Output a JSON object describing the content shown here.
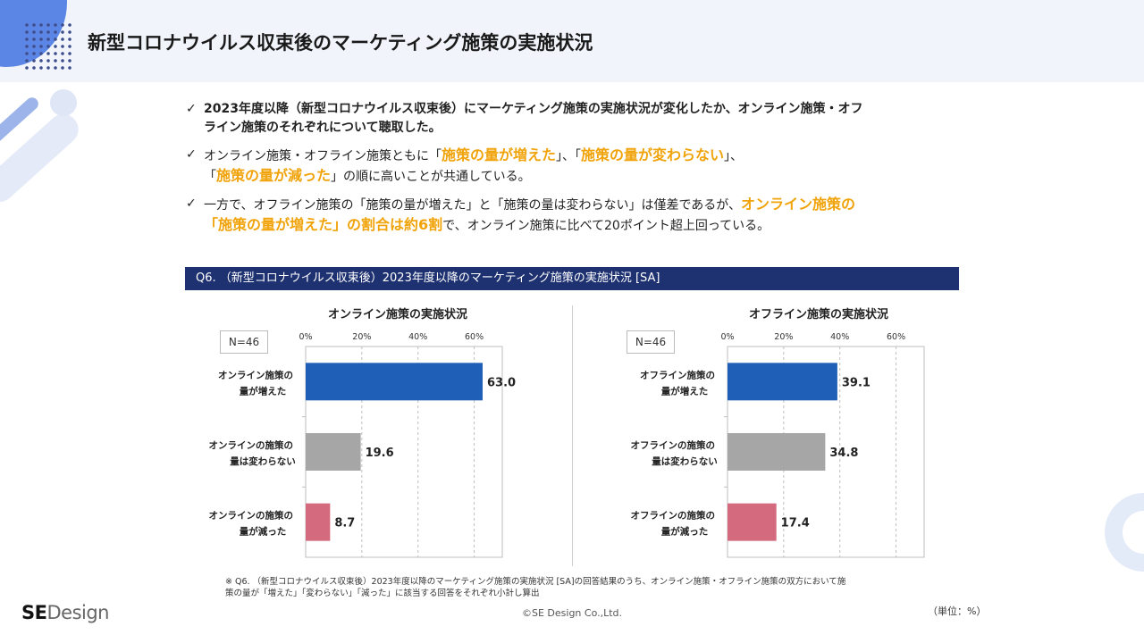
{
  "page": {
    "title": "新型コロナウイルス収束後のマーケティング施策の実施状況"
  },
  "bullets": [
    {
      "check": "✓",
      "line1": "2023年度以降（新型コロナウイルス収束後）にマーケティング施策の実施状況が変化したか、オンライン施策・オフ",
      "line2": "ライン施策のそれぞれについて聴取した。"
    },
    {
      "check": "✓",
      "p1": "オンライン施策・オフライン施策ともに「",
      "h1": "施策の量が増えた",
      "p2": "」、「",
      "h2": "施策の量が変わらない",
      "p3": "」、",
      "p4": "「",
      "h3": "施策の量が減った",
      "p5": "」の順に高いことが共通している。"
    },
    {
      "check": "✓",
      "p1": "一方で、オフライン施策の「施策の量が増えた」と「施策の量は変わらない」は僅差であるが、",
      "h1": "オンライン施策の",
      "h2": "「施策の量が増えた」の割合は約6割",
      "p2": "で、オンライン施策に比べて20ポイント超上回っている。"
    }
  ],
  "question_bar": "Q6. （新型コロナウイルス収束後）2023年度以降のマーケティング施策の実施状況 [SA]",
  "colors": {
    "increase": "#1f5fb8",
    "same": "#a6a6a6",
    "decrease": "#d46a7e",
    "highlight": "#f0a30a",
    "question_bar": "#1e3170"
  },
  "chart_data": [
    {
      "type": "bar",
      "orientation": "horizontal",
      "title": "オンライン施策の実施状況",
      "n_label": "N=46",
      "categories": [
        [
          "オンライン施策の",
          "量が増えた"
        ],
        [
          "オンラインの施策の",
          "量は変わらない"
        ],
        [
          "オンラインの施策の",
          "量が減った"
        ]
      ],
      "values": [
        63.0,
        19.6,
        8.7
      ],
      "value_labels": [
        "63.0",
        "19.6",
        "8.7"
      ],
      "xlim": [
        0,
        70
      ],
      "ticks": [
        0,
        20,
        40,
        60
      ],
      "tick_labels": [
        "0%",
        "20%",
        "40%",
        "60%"
      ],
      "grid": true
    },
    {
      "type": "bar",
      "orientation": "horizontal",
      "title": "オフライン施策の実施状況",
      "n_label": "N=46",
      "categories": [
        [
          "オフライン施策の",
          "量が増えた"
        ],
        [
          "オフラインの施策の",
          "量は変わらない"
        ],
        [
          "オフラインの施策の",
          "量が減った"
        ]
      ],
      "values": [
        39.1,
        34.8,
        17.4
      ],
      "value_labels": [
        "39.1",
        "34.8",
        "17.4"
      ],
      "xlim": [
        0,
        70
      ],
      "ticks": [
        0,
        20,
        40,
        60
      ],
      "tick_labels": [
        "0%",
        "20%",
        "40%",
        "60%"
      ],
      "grid": true
    }
  ],
  "footnote": {
    "line1": "※ Q6. （新型コロナウイルス収束後）2023年度以降のマーケティング施策の実施状況 [SA]の回答結果のうち、オンライン施策・オフライン施策の双方において施",
    "line2": "策の量が「増えた」「変わらない」「減った」に該当する回答をそれぞれ小計し算出"
  },
  "footer": {
    "logo_se": "SE",
    "logo_design": "Design",
    "copyright": "©SE Design Co.,Ltd.",
    "unit": "（単位：%）"
  }
}
